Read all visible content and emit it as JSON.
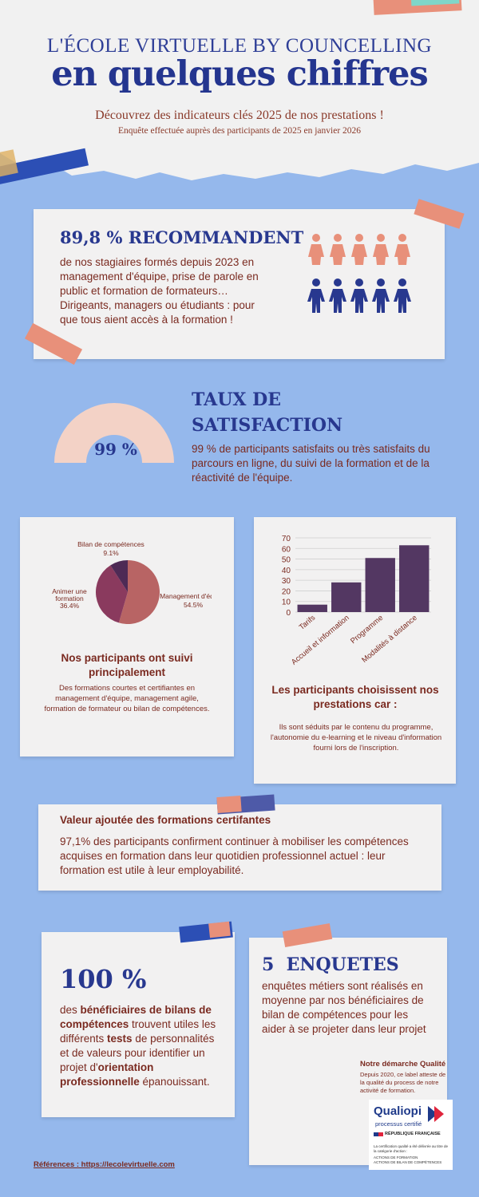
{
  "header": {
    "title_line1": "L'ÉCOLE VIRTUELLE BY COUNCELLING",
    "title_line2": "en quelques chiffres",
    "subtitle": "Découvrez des indicateurs clés 2025 de nos prestations !",
    "survey_note": "Enquête effectuée auprès des participants de 2025 en janvier 2026"
  },
  "recommend": {
    "heading": "89,8 % RECOMMANDENT",
    "text": "de nos stagiaires formés depuis 2023 en management d'équipe, prise de parole en public et formation de formateurs… Dirigeants, managers ou étudiants : pour que tous aient accès à la formation !"
  },
  "satisfaction": {
    "heading_line1": "TAUX DE",
    "heading_line2": "SATISFACTION",
    "gauge_value": "99 %",
    "gauge_fraction": 0.99,
    "text": "99 % de participants satisfaits ou très satisfaits du parcours en ligne, du suivi de la formation et de la réactivité de l'équipe."
  },
  "pie_card": {
    "heading": "Nos participants ont suivi principalement",
    "text": "Des formations courtes et certifiantes en management d'équipe, management agile, formation de formateur ou bilan de compétences.",
    "slices": [
      {
        "label": "Management d'équipe",
        "pct": "54.5%",
        "value": 54.5,
        "color": "#b86464"
      },
      {
        "label_line1": "Animer une",
        "label_line2": "formation",
        "pct": "36.4%",
        "value": 36.4,
        "color": "#8a3a5e"
      },
      {
        "label": "Bilan de compétences",
        "pct": "9.1%",
        "value": 9.1,
        "color": "#4e2a55"
      }
    ]
  },
  "bar_card": {
    "heading": "Les participants choisissent nos prestations car :",
    "text": "Ils sont séduits par le contenu du programme, l'autonomie du e-learning et le niveau d'information fourni lors de l'inscription."
  },
  "chart_data": {
    "type": "bar",
    "categories": [
      "Tarifs",
      "Accueil et information",
      "Programme",
      "Modalités à distance"
    ],
    "values": [
      7,
      28,
      51,
      63
    ],
    "ylim": [
      0,
      70
    ],
    "yticks": [
      "0",
      "10",
      "20",
      "30",
      "40",
      "50",
      "60",
      "70"
    ],
    "bar_color": "#533762",
    "grid": true
  },
  "certif": {
    "heading": "Valeur ajoutée des formations certifantes",
    "text": "97,1% des participants confirment continuer à mobiliser les compétences acquises en formation dans leur quotidien professionnel actuel : leur formation est utile à leur employabilité."
  },
  "hundred": {
    "value": "100 %",
    "t1": "des ",
    "b1": "bénéficiaires de bilans de compétences",
    "t2": " trouvent utiles les différents ",
    "b2": "tests",
    "t3": " de personnalités et de valeurs pour identifier un projet d'",
    "b3": "orientation professionnelle",
    "t4": " épanouissant."
  },
  "enquetes": {
    "heading": "5  ENQUETES",
    "text": "enquêtes métiers sont réalisés en moyenne par nos bénéficiaires de bilan de compétences pour les aider à se projeter dans leur projet"
  },
  "quality": {
    "heading": "Notre démarche Qualité",
    "text": "Depuis 2020, ce label atteste de la qualité du process de notre activité de formation.",
    "logo_name": "Qualiopi",
    "logo_sub": "processus certifié",
    "republique": "RÉPUBLIQUE FRANÇAISE",
    "fine1": "La certification qualité a été délivrée au titre de la catégorie d'action :",
    "fine2": "ACTIONS DE FORMATION",
    "fine3": "ACTIONS DE BILAN DE COMPÉTENCES"
  },
  "footer": {
    "reference": "Références : https://lecolevirtuelle.com"
  },
  "colors": {
    "blue_bg": "#95b8ec",
    "navy": "#28388f",
    "brown": "#7a2a20",
    "salmon": "#e89070",
    "gauge": "#f3d2c6"
  }
}
